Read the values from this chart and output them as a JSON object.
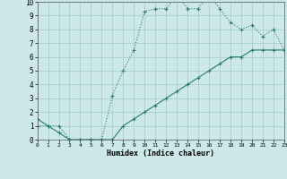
{
  "xlabel": "Humidex (Indice chaleur)",
  "line1_x": [
    0,
    1,
    2,
    3,
    4,
    5,
    6,
    7,
    8,
    9,
    10,
    11,
    12,
    13,
    14,
    15,
    16,
    17,
    18,
    19,
    20,
    21,
    22,
    23
  ],
  "line1_y": [
    1,
    1,
    1,
    0,
    0,
    0,
    0,
    3.2,
    5.0,
    6.5,
    9.3,
    9.5,
    9.5,
    10.5,
    9.5,
    9.5,
    10.5,
    9.5,
    8.5,
    8.0,
    8.3,
    7.5,
    8.0,
    6.5
  ],
  "line2_x": [
    0,
    1,
    2,
    3,
    4,
    5,
    6,
    7,
    8,
    9,
    10,
    11,
    12,
    13,
    14,
    15,
    16,
    17,
    18,
    19,
    20,
    21,
    22,
    23
  ],
  "line2_y": [
    1.5,
    1,
    0.5,
    0,
    0,
    0,
    0,
    0,
    1.0,
    1.5,
    2.0,
    2.5,
    3.0,
    3.5,
    4.0,
    4.5,
    5.0,
    5.5,
    6.0,
    6.0,
    6.5,
    6.5,
    6.5,
    6.5
  ],
  "line_color": "#2a7d6b",
  "bg_color": "#cce8e8",
  "grid_color": "#aacece",
  "xlim": [
    0,
    23
  ],
  "ylim": [
    0,
    10
  ],
  "xticks": [
    0,
    1,
    2,
    3,
    4,
    5,
    6,
    7,
    8,
    9,
    10,
    11,
    12,
    13,
    14,
    15,
    16,
    17,
    18,
    19,
    20,
    21,
    22,
    23
  ],
  "yticks": [
    0,
    1,
    2,
    3,
    4,
    5,
    6,
    7,
    8,
    9,
    10
  ]
}
